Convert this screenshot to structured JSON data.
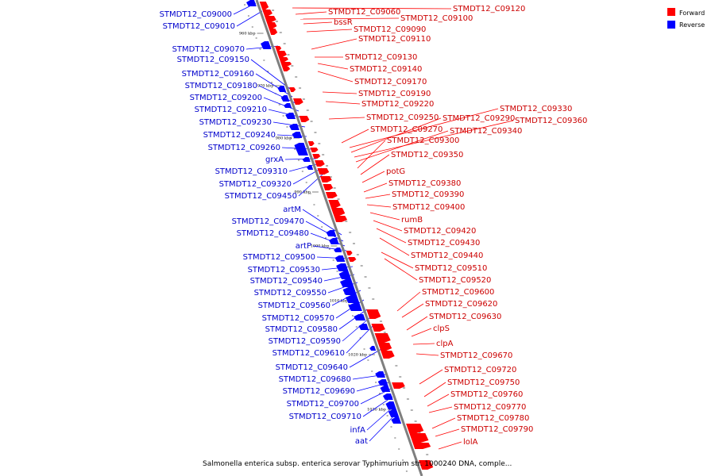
{
  "caption": "Salmonella enterica subsp. enterica serovar Typhimurium str. 1000240 DNA, comple...",
  "legend": {
    "forward": "Forward",
    "reverse": "Reverse",
    "forward_color": "#ff0000",
    "reverse_color": "#0000ff"
  },
  "colors": {
    "forward_label": "#cc0000",
    "reverse_label": "#0000cc",
    "backbone": "#7f7f7f"
  },
  "ticks": [
    "960 kbp",
    "970 kbp",
    "980 kbp",
    "990 kbp",
    "1000 kbp",
    "1010 kbp",
    "1020 kbp",
    "1030 kbp"
  ],
  "reverse_labels": [
    "STMDT12_C09000",
    "STMDT12_C09010",
    "STMDT12_C09070",
    "STMDT12_C09150",
    "STMDT12_C09160",
    "STMDT12_C09180",
    "STMDT12_C09200",
    "STMDT12_C09210",
    "STMDT12_C09230",
    "STMDT12_C09240",
    "STMDT12_C09260",
    "grxA",
    "STMDT12_C09310",
    "STMDT12_C09320",
    "STMDT12_C09450",
    "artM",
    "STMDT12_C09470",
    "STMDT12_C09480",
    "artP",
    "STMDT12_C09500",
    "STMDT12_C09530",
    "STMDT12_C09540",
    "STMDT12_C09550",
    "STMDT12_C09560",
    "STMDT12_C09570",
    "STMDT12_C09580",
    "STMDT12_C09590",
    "STMDT12_C09610",
    "STMDT12_C09640",
    "STMDT12_C09680",
    "STMDT12_C09690",
    "STMDT12_C09700",
    "STMDT12_C09710",
    "infA",
    "aat"
  ],
  "forward_labels": [
    "STMDT12_C09120",
    "STMDT12_C09060",
    "STMDT12_C09100",
    "bssR",
    "STMDT12_C09090",
    "STMDT12_C09110",
    "STMDT12_C09130",
    "STMDT12_C09140",
    "STMDT12_C09170",
    "STMDT12_C09190",
    "STMDT12_C09220",
    "STMDT12_C09330",
    "STMDT12_C09250",
    "STMDT12_C09290",
    "STMDT12_C09360",
    "STMDT12_C09270",
    "STMDT12_C09340",
    "STMDT12_C09300",
    "STMDT12_C09350",
    "potG",
    "STMDT12_C09380",
    "STMDT12_C09390",
    "STMDT12_C09400",
    "rumB",
    "STMDT12_C09420",
    "STMDT12_C09430",
    "STMDT12_C09440",
    "STMDT12_C09510",
    "STMDT12_C09520",
    "STMDT12_C09600",
    "STMDT12_C09620",
    "STMDT12_C09630",
    "clpS",
    "clpA",
    "STMDT12_C09670",
    "STMDT12_C09720",
    "STMDT12_C09750",
    "STMDT12_C09760",
    "STMDT12_C09770",
    "STMDT12_C09780",
    "STMDT12_C09790",
    "lolA"
  ]
}
